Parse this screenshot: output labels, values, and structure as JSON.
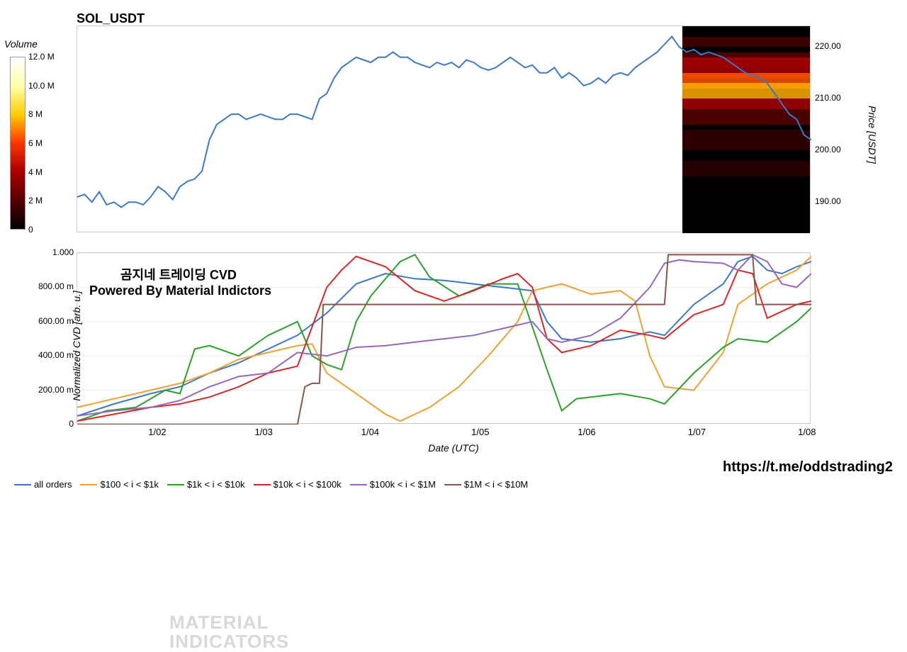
{
  "title": "SOL_USDT",
  "colorbar": {
    "title": "Volume",
    "ticks": [
      "12.0 M",
      "10.0 M",
      "8 M",
      "6 M",
      "4 M",
      "2 M",
      "0"
    ],
    "gradient": [
      "#000000",
      "#550000",
      "#aa0000",
      "#ff3300",
      "#ffcc00",
      "#ffffaa",
      "#ffffff"
    ]
  },
  "price_chart": {
    "type": "line",
    "ylim": [
      184,
      224
    ],
    "yticks": [
      "220.00",
      "210.00",
      "200.00",
      "190.00"
    ],
    "ytick_vals": [
      220,
      210,
      200,
      190
    ],
    "ylabel": "Price [USDT]",
    "line_color": "#3b78c8",
    "line_width": 2,
    "background": "#ffffff",
    "series_x": [
      0,
      0.01,
      0.02,
      0.03,
      0.04,
      0.05,
      0.06,
      0.07,
      0.08,
      0.09,
      0.1,
      0.11,
      0.12,
      0.13,
      0.14,
      0.15,
      0.16,
      0.17,
      0.18,
      0.19,
      0.2,
      0.21,
      0.22,
      0.23,
      0.24,
      0.25,
      0.26,
      0.27,
      0.28,
      0.29,
      0.3,
      0.31,
      0.32,
      0.33,
      0.34,
      0.35,
      0.36,
      0.37,
      0.38,
      0.39,
      0.4,
      0.41,
      0.42,
      0.43,
      0.44,
      0.45,
      0.46,
      0.47,
      0.48,
      0.49,
      0.5,
      0.51,
      0.52,
      0.53,
      0.54,
      0.55,
      0.56,
      0.57,
      0.58,
      0.59,
      0.6,
      0.61,
      0.62,
      0.63,
      0.64,
      0.65,
      0.66,
      0.67,
      0.68,
      0.69,
      0.7,
      0.71,
      0.72,
      0.73,
      0.74,
      0.75,
      0.76,
      0.77,
      0.78,
      0.79,
      0.8,
      0.81,
      0.82,
      0.83,
      0.84,
      0.85,
      0.86,
      0.87,
      0.88,
      0.89,
      0.9,
      0.91,
      0.92,
      0.93,
      0.94,
      0.95,
      0.96,
      0.97,
      0.98,
      0.99,
      1.0
    ],
    "series_y": [
      191,
      191.5,
      190,
      192,
      189.5,
      190,
      189,
      190,
      190,
      189.5,
      191,
      193,
      192,
      190.5,
      193,
      194,
      194.5,
      196,
      202,
      205,
      206,
      207,
      207,
      206,
      206.5,
      207,
      206.5,
      206,
      206,
      207,
      207,
      206.5,
      206,
      210,
      211,
      214,
      216,
      217,
      218,
      217.5,
      217,
      218,
      218,
      219,
      218,
      218,
      217,
      216.5,
      216,
      217,
      216.5,
      217,
      216,
      217.5,
      217,
      216,
      215.5,
      216,
      217,
      218,
      217,
      216,
      216.5,
      215,
      215,
      216,
      214,
      215,
      214,
      212.5,
      213,
      214,
      213,
      214.5,
      215,
      214.5,
      216,
      217,
      218,
      219,
      220.5,
      222,
      220,
      219,
      219.5,
      218.5,
      219,
      218.5,
      218,
      217,
      216,
      215,
      214.5,
      214,
      213,
      211,
      209,
      207,
      206,
      203,
      202
    ],
    "heatmap_bands": [
      {
        "y": 216,
        "h": 3,
        "c": "#5a0000"
      },
      {
        "y": 214,
        "h": 4,
        "c": "#aa0000"
      },
      {
        "y": 212,
        "h": 3,
        "c": "#ff5500"
      },
      {
        "y": 210,
        "h": 3,
        "c": "#ffaa00"
      },
      {
        "y": 208,
        "h": 2,
        "c": "#aa0000"
      },
      {
        "y": 205,
        "h": 3,
        "c": "#550000"
      },
      {
        "y": 200,
        "h": 4,
        "c": "#330000"
      },
      {
        "y": 195,
        "h": 3,
        "c": "#2a0000"
      },
      {
        "y": 220,
        "h": 2,
        "c": "#440000"
      }
    ]
  },
  "cvd_chart": {
    "type": "line",
    "ylim": [
      0,
      1.0
    ],
    "yticks": [
      "1.000",
      "800.00 m",
      "600.00 m",
      "400.00 m",
      "200.00 m",
      "0"
    ],
    "ytick_vals": [
      1.0,
      0.8,
      0.6,
      0.4,
      0.2,
      0
    ],
    "ylabel": "Normalized CVD [arb. u.]",
    "title": "곰지네 트레이딩 CVD",
    "subtitle": "Powered By Material Indictors",
    "watermark": "MATERIAL\nINDICATORS",
    "background": "#ffffff",
    "grid_color": "#eeeeee",
    "line_width": 2,
    "series": [
      {
        "name": "all orders",
        "color": "#3b78c8",
        "x": [
          0,
          0.05,
          0.1,
          0.14,
          0.18,
          0.22,
          0.26,
          0.3,
          0.34,
          0.38,
          0.42,
          0.46,
          0.5,
          0.54,
          0.58,
          0.62,
          0.64,
          0.66,
          0.7,
          0.74,
          0.78,
          0.8,
          0.84,
          0.88,
          0.9,
          0.92,
          0.94,
          0.96,
          0.98,
          1.0
        ],
        "y": [
          0.05,
          0.12,
          0.18,
          0.22,
          0.3,
          0.36,
          0.44,
          0.52,
          0.65,
          0.82,
          0.88,
          0.85,
          0.84,
          0.82,
          0.8,
          0.78,
          0.6,
          0.5,
          0.48,
          0.5,
          0.54,
          0.52,
          0.7,
          0.82,
          0.95,
          0.98,
          0.9,
          0.88,
          0.92,
          0.95
        ]
      },
      {
        "name": "$100 < i < $1k",
        "color": "#f0a030",
        "x": [
          0,
          0.05,
          0.1,
          0.14,
          0.18,
          0.22,
          0.26,
          0.3,
          0.32,
          0.34,
          0.38,
          0.42,
          0.44,
          0.48,
          0.52,
          0.56,
          0.6,
          0.62,
          0.64,
          0.66,
          0.7,
          0.74,
          0.76,
          0.78,
          0.8,
          0.84,
          0.88,
          0.9,
          0.94,
          0.98,
          1.0
        ],
        "y": [
          0.1,
          0.15,
          0.2,
          0.24,
          0.3,
          0.38,
          0.42,
          0.46,
          0.47,
          0.3,
          0.18,
          0.06,
          0.02,
          0.1,
          0.22,
          0.4,
          0.6,
          0.78,
          0.8,
          0.82,
          0.76,
          0.78,
          0.72,
          0.4,
          0.22,
          0.2,
          0.42,
          0.7,
          0.82,
          0.9,
          0.98
        ]
      },
      {
        "name": "$1k < i < $10k",
        "color": "#2ca02c",
        "x": [
          0,
          0.04,
          0.08,
          0.12,
          0.14,
          0.16,
          0.18,
          0.22,
          0.26,
          0.3,
          0.32,
          0.34,
          0.36,
          0.38,
          0.4,
          0.44,
          0.46,
          0.48,
          0.52,
          0.56,
          0.6,
          0.64,
          0.66,
          0.68,
          0.7,
          0.74,
          0.78,
          0.8,
          0.84,
          0.88,
          0.9,
          0.94,
          0.98,
          1.0
        ],
        "y": [
          0.02,
          0.08,
          0.1,
          0.2,
          0.18,
          0.44,
          0.46,
          0.4,
          0.52,
          0.6,
          0.4,
          0.35,
          0.32,
          0.6,
          0.75,
          0.95,
          0.99,
          0.86,
          0.75,
          0.82,
          0.82,
          0.32,
          0.08,
          0.15,
          0.16,
          0.18,
          0.15,
          0.12,
          0.3,
          0.45,
          0.5,
          0.48,
          0.6,
          0.68
        ]
      },
      {
        "name": "$10k < i < $100k",
        "color": "#d62728",
        "x": [
          0,
          0.05,
          0.1,
          0.14,
          0.18,
          0.22,
          0.26,
          0.3,
          0.34,
          0.36,
          0.38,
          0.42,
          0.46,
          0.5,
          0.54,
          0.58,
          0.6,
          0.62,
          0.64,
          0.66,
          0.7,
          0.74,
          0.78,
          0.8,
          0.84,
          0.88,
          0.9,
          0.92,
          0.94,
          0.98,
          1.0
        ],
        "y": [
          0.02,
          0.06,
          0.1,
          0.12,
          0.16,
          0.22,
          0.3,
          0.34,
          0.8,
          0.9,
          0.98,
          0.92,
          0.78,
          0.72,
          0.78,
          0.85,
          0.88,
          0.8,
          0.5,
          0.42,
          0.46,
          0.55,
          0.52,
          0.5,
          0.64,
          0.7,
          0.9,
          0.88,
          0.62,
          0.7,
          0.72
        ]
      },
      {
        "name": "$100k < i < $1M",
        "color": "#9467bd",
        "x": [
          0,
          0.05,
          0.1,
          0.14,
          0.18,
          0.22,
          0.26,
          0.3,
          0.34,
          0.38,
          0.42,
          0.46,
          0.5,
          0.54,
          0.58,
          0.62,
          0.64,
          0.66,
          0.7,
          0.74,
          0.78,
          0.8,
          0.82,
          0.84,
          0.88,
          0.9,
          0.92,
          0.94,
          0.96,
          0.98,
          1.0
        ],
        "y": [
          0.05,
          0.08,
          0.1,
          0.14,
          0.22,
          0.28,
          0.3,
          0.42,
          0.4,
          0.45,
          0.46,
          0.48,
          0.5,
          0.52,
          0.56,
          0.6,
          0.5,
          0.48,
          0.52,
          0.62,
          0.8,
          0.94,
          0.96,
          0.95,
          0.94,
          0.9,
          0.99,
          0.95,
          0.82,
          0.8,
          0.88
        ]
      },
      {
        "name": "$1M < i < $10M",
        "color": "#8c564b",
        "x": [
          0,
          0.3,
          0.31,
          0.32,
          0.33,
          0.335,
          0.64,
          0.65,
          0.8,
          0.805,
          0.92,
          0.925,
          1.0
        ],
        "y": [
          0.0,
          0.0,
          0.22,
          0.24,
          0.24,
          0.7,
          0.7,
          0.7,
          0.7,
          0.99,
          0.99,
          0.7,
          0.7
        ]
      }
    ]
  },
  "x_axis": {
    "title": "Date (UTC)",
    "ticks": [
      "1/02",
      "1/03",
      "1/04",
      "1/05",
      "1/06",
      "1/07",
      "1/08"
    ],
    "tick_pos": [
      0.11,
      0.255,
      0.4,
      0.55,
      0.695,
      0.845,
      0.995
    ]
  },
  "legend": {
    "items": [
      {
        "label": "all orders",
        "color": "#3b78c8"
      },
      {
        "label": "$100 < i < $1k",
        "color": "#f0a030"
      },
      {
        "label": "$1k < i < $10k",
        "color": "#2ca02c"
      },
      {
        "label": "$10k < i < $100k",
        "color": "#d62728"
      },
      {
        "label": "$100k < i < $1M",
        "color": "#9467bd"
      },
      {
        "label": "$1M < i < $10M",
        "color": "#8c564b"
      }
    ]
  },
  "footer_link": "https://t.me/oddstrading2"
}
